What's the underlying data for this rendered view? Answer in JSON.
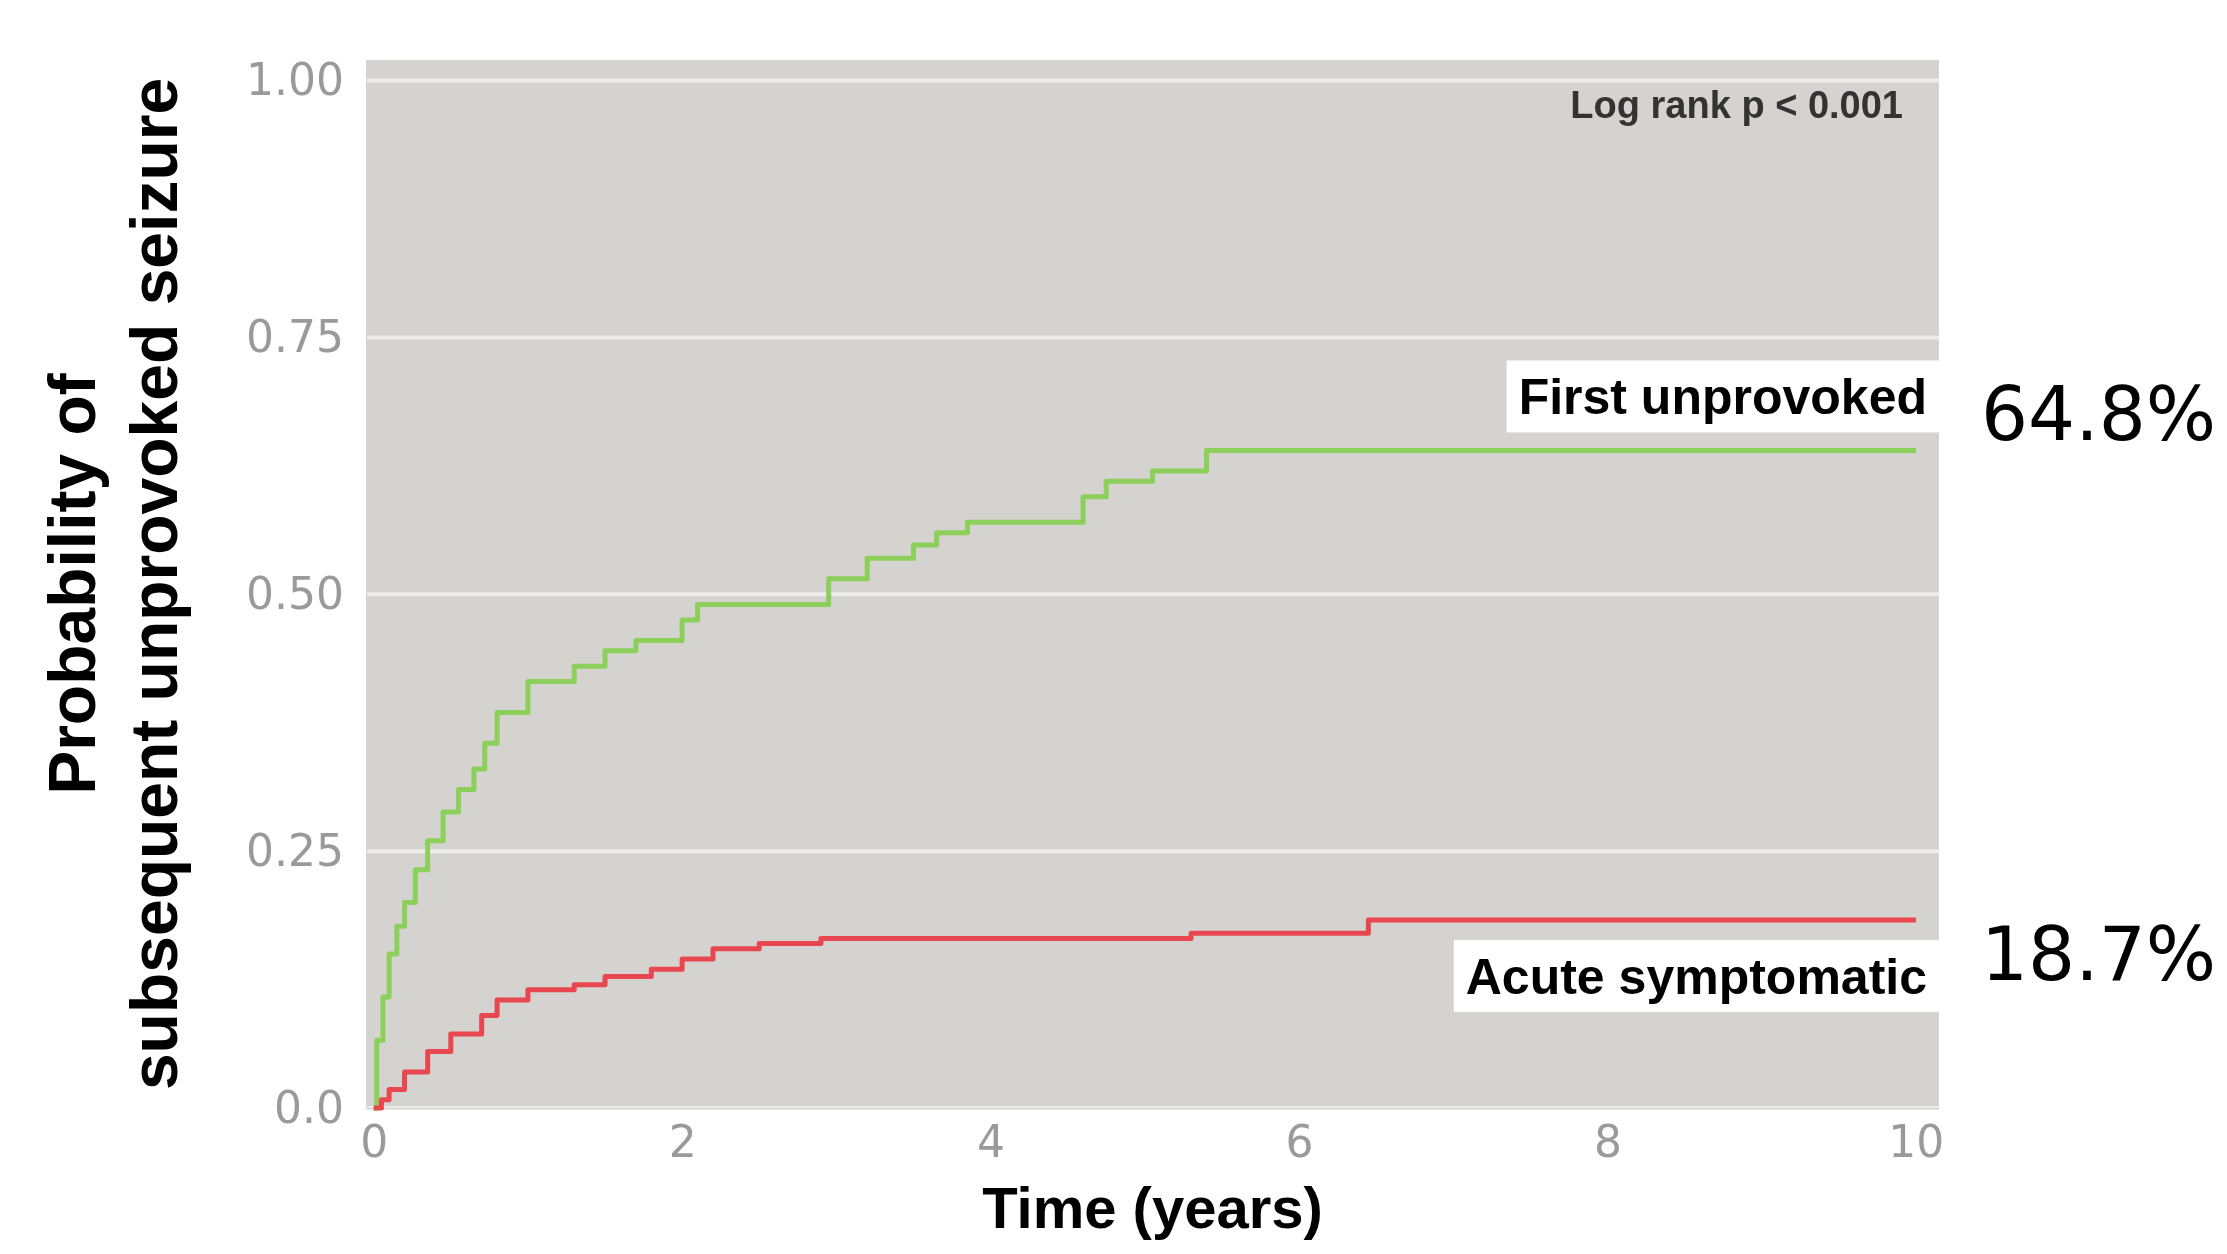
{
  "chart_data": {
    "type": "step",
    "ylabel": "Probability of\nsubsequent unprovoked seizure",
    "xlabel": "Time (years)",
    "xlim": [
      -0.05,
      10.15
    ],
    "xticks": [
      0,
      2,
      4,
      6,
      8,
      10
    ],
    "ylim": [
      0,
      1.02
    ],
    "yticks": [
      {
        "value": 0,
        "label": "0.0"
      },
      {
        "value": 0.25,
        "label": "0.25"
      },
      {
        "value": 0.5,
        "label": "0.50"
      },
      {
        "value": 0.75,
        "label": "0.75"
      },
      {
        "value": 1,
        "label": "1.00"
      }
    ],
    "grid": "y",
    "series": [
      {
        "name": "First unprovoked",
        "color": "#8ccf5a",
        "x": [
          0,
          0.02,
          0.06,
          0.1,
          0.15,
          0.2,
          0.27,
          0.35,
          0.45,
          0.55,
          0.65,
          0.72,
          0.8,
          1.0,
          1.3,
          1.5,
          1.7,
          2.0,
          2.1,
          2.95,
          3.2,
          3.5,
          3.65,
          3.85,
          4.6,
          4.75,
          5.05,
          5.4,
          10
        ],
        "values": [
          0,
          0.066,
          0.108,
          0.15,
          0.177,
          0.2,
          0.232,
          0.26,
          0.288,
          0.31,
          0.33,
          0.355,
          0.385,
          0.415,
          0.43,
          0.445,
          0.455,
          0.475,
          0.49,
          0.515,
          0.535,
          0.548,
          0.56,
          0.57,
          0.595,
          0.61,
          0.62,
          0.64,
          0.64
        ]
      },
      {
        "name": "Acute symptomatic",
        "color": "#e8474f",
        "x": [
          0,
          0.05,
          0.1,
          0.2,
          0.35,
          0.5,
          0.7,
          0.8,
          1.0,
          1.3,
          1.5,
          1.8,
          2.0,
          2.2,
          2.5,
          2.9,
          5.3,
          6.45,
          10
        ],
        "values": [
          0,
          0.008,
          0.018,
          0.035,
          0.055,
          0.072,
          0.09,
          0.105,
          0.115,
          0.12,
          0.128,
          0.135,
          0.145,
          0.155,
          0.16,
          0.165,
          0.17,
          0.183,
          0.183
        ]
      }
    ],
    "annotations": [
      "Log rank p < 0.001",
      "64.8%",
      "18.7%"
    ]
  }
}
